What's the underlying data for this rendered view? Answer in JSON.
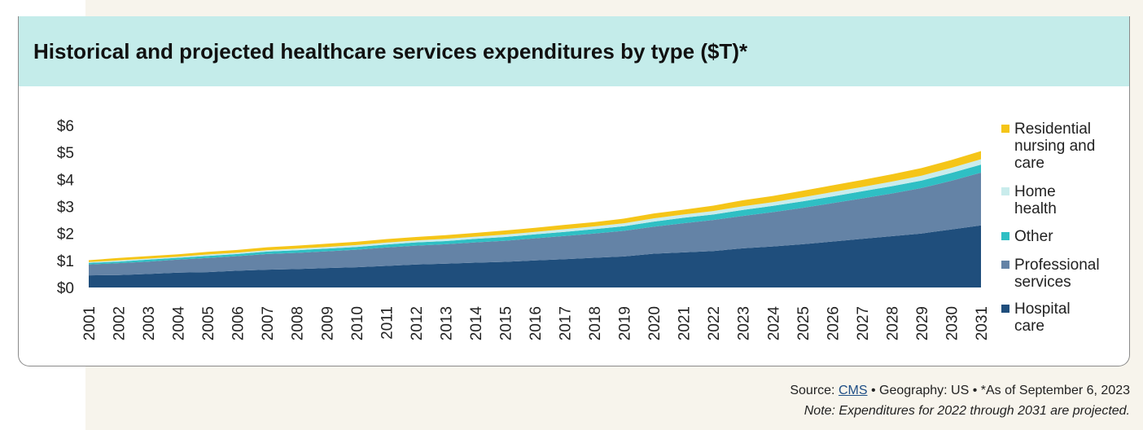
{
  "colors": {
    "header_bg": "#c4ecea",
    "page_bg": "#f7f4ec",
    "hospital": "#1f4e7c",
    "professional": "#6483a6",
    "other": "#2fbfc4",
    "home": "#c9ecec",
    "residential": "#f5c518",
    "link": "#1f4e85"
  },
  "chart_data": {
    "type": "area",
    "stacked": true,
    "title": "Historical and projected healthcare services expenditures by type ($T)*",
    "xlabel": "",
    "ylabel": "",
    "ylim": [
      0,
      6
    ],
    "y_ticks": [
      "$0",
      "$1",
      "$2",
      "$3",
      "$4",
      "$5",
      "$6"
    ],
    "legend_position": "right",
    "grid": false,
    "x": [
      "2001",
      "2002",
      "2003",
      "2004",
      "2005",
      "2006",
      "2007",
      "2008",
      "2009",
      "2010",
      "2011",
      "2012",
      "2013",
      "2014",
      "2015",
      "2016",
      "2017",
      "2018",
      "2019",
      "2020",
      "2021",
      "2022",
      "2023",
      "2024",
      "2025",
      "2026",
      "2027",
      "2028",
      "2029",
      "2030",
      "2031"
    ],
    "series": [
      {
        "name": "Hospital care",
        "color": "#1f4e7c",
        "values": [
          0.45,
          0.46,
          0.5,
          0.55,
          0.57,
          0.62,
          0.66,
          0.68,
          0.72,
          0.75,
          0.8,
          0.85,
          0.88,
          0.92,
          0.95,
          1.0,
          1.05,
          1.1,
          1.15,
          1.25,
          1.3,
          1.35,
          1.45,
          1.52,
          1.6,
          1.7,
          1.8,
          1.9,
          2.0,
          2.15,
          2.3
        ]
      },
      {
        "name": "Professional services",
        "color": "#6483a6",
        "values": [
          0.4,
          0.44,
          0.46,
          0.48,
          0.52,
          0.54,
          0.58,
          0.6,
          0.62,
          0.65,
          0.68,
          0.7,
          0.72,
          0.75,
          0.78,
          0.82,
          0.86,
          0.9,
          0.95,
          1.0,
          1.08,
          1.15,
          1.2,
          1.27,
          1.35,
          1.42,
          1.5,
          1.58,
          1.68,
          1.8,
          1.95
        ]
      },
      {
        "name": "Other",
        "color": "#2fbfc4",
        "values": [
          0.06,
          0.06,
          0.07,
          0.07,
          0.08,
          0.08,
          0.09,
          0.1,
          0.1,
          0.1,
          0.11,
          0.12,
          0.12,
          0.13,
          0.14,
          0.15,
          0.15,
          0.16,
          0.17,
          0.19,
          0.2,
          0.2,
          0.22,
          0.23,
          0.24,
          0.25,
          0.26,
          0.27,
          0.28,
          0.29,
          0.3
        ]
      },
      {
        "name": "Home health",
        "color": "#c9ecec",
        "values": [
          0.03,
          0.04,
          0.04,
          0.04,
          0.05,
          0.05,
          0.05,
          0.06,
          0.06,
          0.07,
          0.07,
          0.07,
          0.08,
          0.08,
          0.09,
          0.09,
          0.1,
          0.1,
          0.11,
          0.12,
          0.12,
          0.13,
          0.14,
          0.14,
          0.15,
          0.16,
          0.16,
          0.17,
          0.18,
          0.19,
          0.2
        ]
      },
      {
        "name": "Residential nursing and care",
        "color": "#f5c518",
        "values": [
          0.07,
          0.09,
          0.09,
          0.09,
          0.1,
          0.1,
          0.11,
          0.11,
          0.12,
          0.12,
          0.13,
          0.13,
          0.14,
          0.14,
          0.15,
          0.15,
          0.16,
          0.16,
          0.17,
          0.18,
          0.18,
          0.2,
          0.22,
          0.23,
          0.24,
          0.25,
          0.26,
          0.27,
          0.28,
          0.29,
          0.3
        ]
      }
    ]
  },
  "legend_lines": [
    [
      "Residential",
      "nursing and",
      "care"
    ],
    [
      "Home",
      "health"
    ],
    [
      "Other"
    ],
    [
      "Professional",
      "services"
    ],
    [
      "Hospital",
      "care"
    ]
  ],
  "footer": {
    "source_prefix": "Source: ",
    "source_link": "CMS",
    "source_suffix": " • Geography: US • *As of September 6, 2023",
    "note": "Note: Expenditures for 2022 through 2031 are projected."
  }
}
